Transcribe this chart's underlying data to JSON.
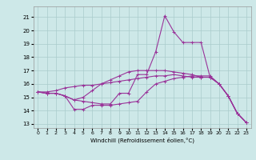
{
  "xlabel": "Windchill (Refroidissement éolien,°C)",
  "xlim": [
    -0.5,
    23.5
  ],
  "ylim": [
    12.7,
    21.8
  ],
  "yticks": [
    13,
    14,
    15,
    16,
    17,
    18,
    19,
    20,
    21
  ],
  "xticks": [
    0,
    1,
    2,
    3,
    4,
    5,
    6,
    7,
    8,
    9,
    10,
    11,
    12,
    13,
    14,
    15,
    16,
    17,
    18,
    19,
    20,
    21,
    22,
    23
  ],
  "bg_color": "#cde8e8",
  "grid_color": "#aacccc",
  "line_color": "#993399",
  "lines": [
    [
      15.4,
      15.3,
      15.3,
      15.1,
      14.8,
      14.7,
      14.6,
      14.5,
      14.5,
      15.3,
      15.3,
      16.7,
      16.7,
      18.4,
      21.1,
      19.9,
      19.1,
      19.1,
      19.1,
      16.5,
      16.0,
      15.1,
      13.8,
      13.1
    ],
    [
      15.4,
      15.3,
      15.3,
      15.1,
      14.1,
      14.1,
      14.4,
      14.4,
      14.4,
      14.5,
      14.6,
      14.7,
      15.4,
      16.0,
      16.2,
      16.4,
      16.5,
      16.6,
      16.6,
      16.6,
      16.0,
      15.1,
      13.8,
      13.1
    ],
    [
      15.4,
      15.3,
      15.3,
      15.1,
      14.8,
      15.0,
      15.5,
      16.0,
      16.3,
      16.6,
      16.9,
      17.0,
      17.0,
      17.0,
      17.0,
      16.9,
      16.8,
      16.7,
      16.5,
      16.5,
      16.0,
      15.1,
      13.8,
      13.1
    ],
    [
      15.4,
      15.4,
      15.5,
      15.7,
      15.8,
      15.9,
      15.9,
      16.0,
      16.1,
      16.2,
      16.3,
      16.4,
      16.5,
      16.6,
      16.6,
      16.7,
      16.6,
      16.5,
      16.5,
      16.5,
      16.0,
      15.1,
      13.8,
      13.1
    ]
  ]
}
